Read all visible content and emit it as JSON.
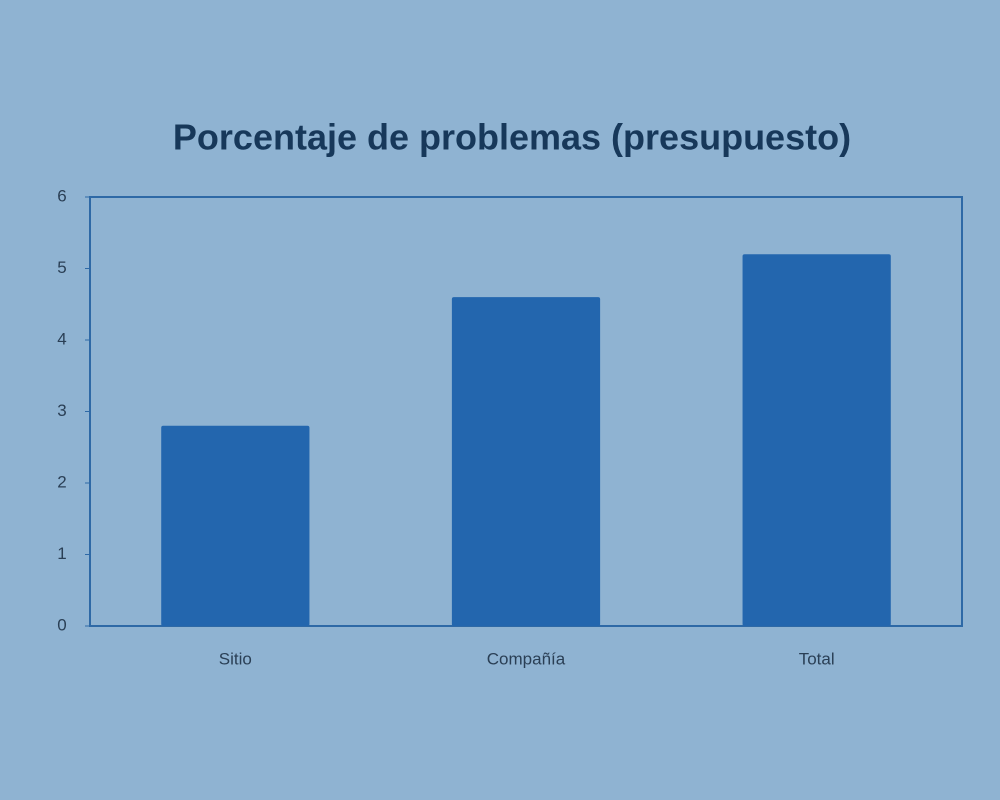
{
  "chart_data": {
    "type": "bar",
    "title": "Porcentaje de problemas (presupuesto)",
    "categories": [
      "Sitio",
      "Compañía",
      "Total"
    ],
    "values": [
      2.8,
      4.6,
      5.2
    ],
    "color": "#2366ae",
    "ylim": [
      0,
      6
    ],
    "yticks": [
      0,
      1,
      2,
      3,
      4,
      5,
      6
    ],
    "grid": false
  }
}
